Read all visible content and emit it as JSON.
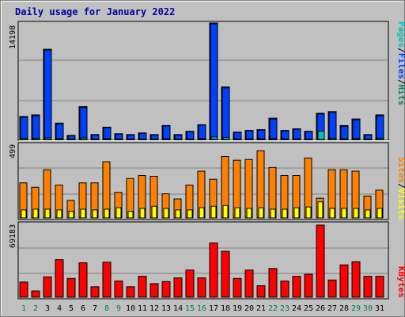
{
  "colors": {
    "pages": "#00c0c0",
    "files": "#0040ff",
    "hits": "#00805c",
    "visits": "#ffff00",
    "sites": "#ff8000",
    "kbytes": "#ff0000",
    "title": "#0000a0",
    "weekend": "#00805c",
    "weekday": "#000000"
  },
  "chart_data": {
    "type": "bar",
    "title": "Daily usage for January 2022",
    "categories": [
      "1",
      "2",
      "3",
      "4",
      "5",
      "6",
      "7",
      "8",
      "9",
      "10",
      "11",
      "12",
      "13",
      "14",
      "15",
      "16",
      "17",
      "18",
      "19",
      "20",
      "21",
      "22",
      "23",
      "24",
      "25",
      "26",
      "27",
      "28",
      "29",
      "30",
      "31"
    ],
    "weekend_days": [
      1,
      2,
      8,
      9,
      15,
      16,
      22,
      23,
      29,
      30
    ],
    "panels": [
      {
        "panel": "hits-files-pages",
        "ymax_label": "14198",
        "ylim": [
          0,
          14198
        ],
        "legend": [
          "Pages",
          "/",
          "Files",
          "/",
          "Hits"
        ],
        "series": [
          {
            "name": "Hits",
            "values": [
              2800,
              3000,
              11000,
              2000,
              500,
              4000,
              600,
              1500,
              700,
              600,
              800,
              600,
              1700,
              600,
              1000,
              1800,
              14198,
              6400,
              900,
              1100,
              1200,
              2600,
              1100,
              1300,
              1000,
              3200,
              3400,
              1700,
              2500,
              600,
              3000
            ]
          },
          {
            "name": "Files",
            "values": [
              2700,
              2900,
              10900,
              1900,
              450,
              3900,
              550,
              1450,
              650,
              550,
              750,
              550,
              1650,
              550,
              950,
              1750,
              14100,
              6300,
              850,
              1050,
              1150,
              2500,
              1050,
              1250,
              950,
              3100,
              3300,
              1600,
              2400,
              550,
              2900
            ]
          },
          {
            "name": "Pages",
            "values": [
              150,
              150,
              200,
              100,
              50,
              200,
              30,
              80,
              40,
              30,
              40,
              30,
              80,
              30,
              50,
              90,
              300,
              250,
              60,
              60,
              70,
              120,
              60,
              60,
              50,
              1000,
              150,
              80,
              120,
              30,
              150
            ]
          }
        ]
      },
      {
        "panel": "visits-sites",
        "ymax_label": "499",
        "ylim": [
          0,
          499
        ],
        "legend": [
          "Sites",
          "/",
          "Visits"
        ],
        "series": [
          {
            "name": "Sites",
            "values": [
              240,
              210,
              330,
              225,
              120,
              240,
              240,
              385,
              175,
              270,
              290,
              285,
              165,
              130,
              225,
              320,
              265,
              420,
              395,
              400,
              460,
              345,
              290,
              290,
              410,
              135,
              330,
              330,
              320,
              150,
              190
            ]
          },
          {
            "name": "Visits",
            "values": [
              55,
              60,
              60,
              55,
              45,
              60,
              55,
              60,
              70,
              45,
              65,
              80,
              65,
              55,
              55,
              70,
              80,
              85,
              70,
              65,
              70,
              60,
              60,
              70,
              75,
              110,
              65,
              65,
              65,
              55,
              65
            ]
          }
        ]
      },
      {
        "panel": "kbytes",
        "ymax_label": "69183",
        "ylim": [
          0,
          69183
        ],
        "legend": [
          "KBytes"
        ],
        "series": [
          {
            "name": "KBytes",
            "values": [
              14500,
              6000,
              19500,
              36000,
              18000,
              33000,
              10000,
              33500,
              15500,
              10000,
              20000,
              13000,
              15000,
              18500,
              26000,
              18500,
              52000,
              44000,
              18000,
              26000,
              11000,
              27500,
              15500,
              20000,
              22000,
              69183,
              16500,
              31000,
              34000,
              20000,
              20000
            ]
          }
        ]
      }
    ]
  }
}
